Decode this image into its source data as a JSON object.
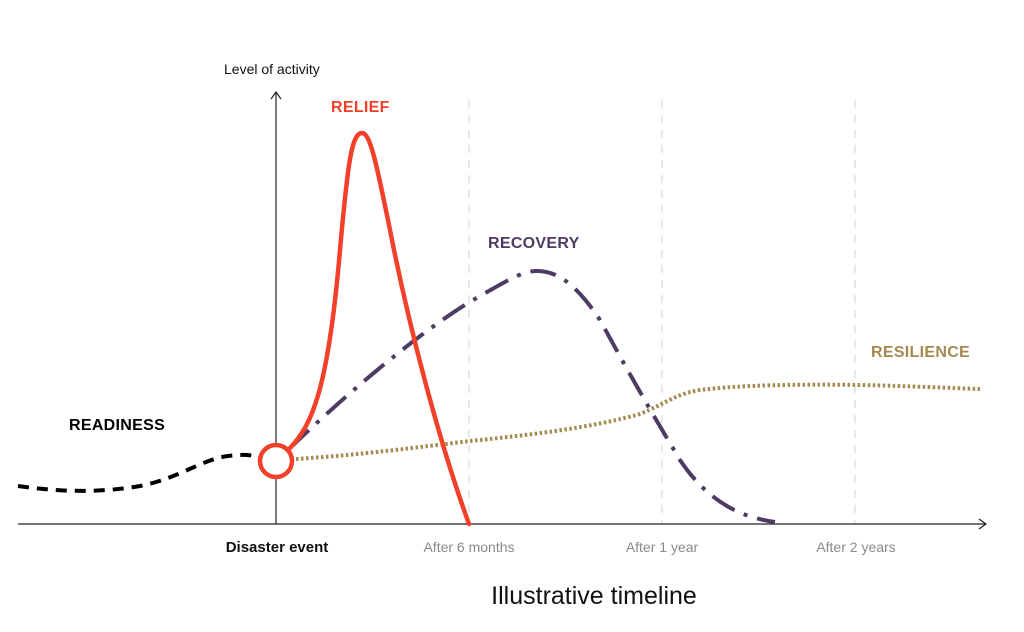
{
  "y_axis_label": "Level of activity",
  "x_title": "Illustrative timeline",
  "ticks": [
    {
      "label": "Disaster event",
      "strong": true
    },
    {
      "label": "After 6 months",
      "strong": false
    },
    {
      "label": "After 1 year",
      "strong": false
    },
    {
      "label": "After 2 years",
      "strong": false
    }
  ],
  "phases": {
    "readiness": {
      "label": "READINESS",
      "color": "#000000",
      "style": "dashed"
    },
    "relief": {
      "label": "RELIEF",
      "color": "#f2402a",
      "style": "solid"
    },
    "recovery": {
      "label": "RECOVERY",
      "color": "#4e3b63",
      "style": "dash-dot"
    },
    "resilience": {
      "label": "RESILIENCE",
      "color": "#a48a50",
      "style": "dotted"
    }
  },
  "colors": {
    "axis": "#222222",
    "gridline": "#d2d2d2",
    "marker": "#f2402a"
  }
}
